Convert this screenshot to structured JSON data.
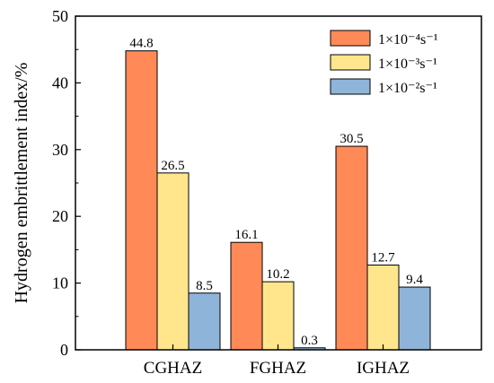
{
  "chart_data": {
    "type": "bar",
    "ylabel": "Hydrogen embrittlement index/%",
    "xlabel": "",
    "ylim": [
      0,
      50
    ],
    "yticks": [
      0,
      10,
      20,
      30,
      40,
      50
    ],
    "categories": [
      "CGHAZ",
      "FGHAZ",
      "IGHAZ"
    ],
    "series": [
      {
        "name": "1×10⁻⁴s⁻¹",
        "color": "#ff8a57",
        "values": [
          44.8,
          16.1,
          30.5
        ],
        "labels": [
          "44.8",
          "16.1",
          "30.5"
        ]
      },
      {
        "name": "1×10⁻³s⁻¹",
        "color": "#ffe68c",
        "values": [
          26.5,
          10.2,
          12.7
        ],
        "labels": [
          "26.5",
          "10.2",
          "12.7"
        ]
      },
      {
        "name": "1×10⁻²s⁻¹",
        "color": "#8fb4da",
        "values": [
          8.5,
          0.3,
          9.4
        ],
        "labels": [
          "8.5",
          "0.3",
          "9.4"
        ]
      }
    ],
    "legend_position": "top-right",
    "grid": false
  }
}
